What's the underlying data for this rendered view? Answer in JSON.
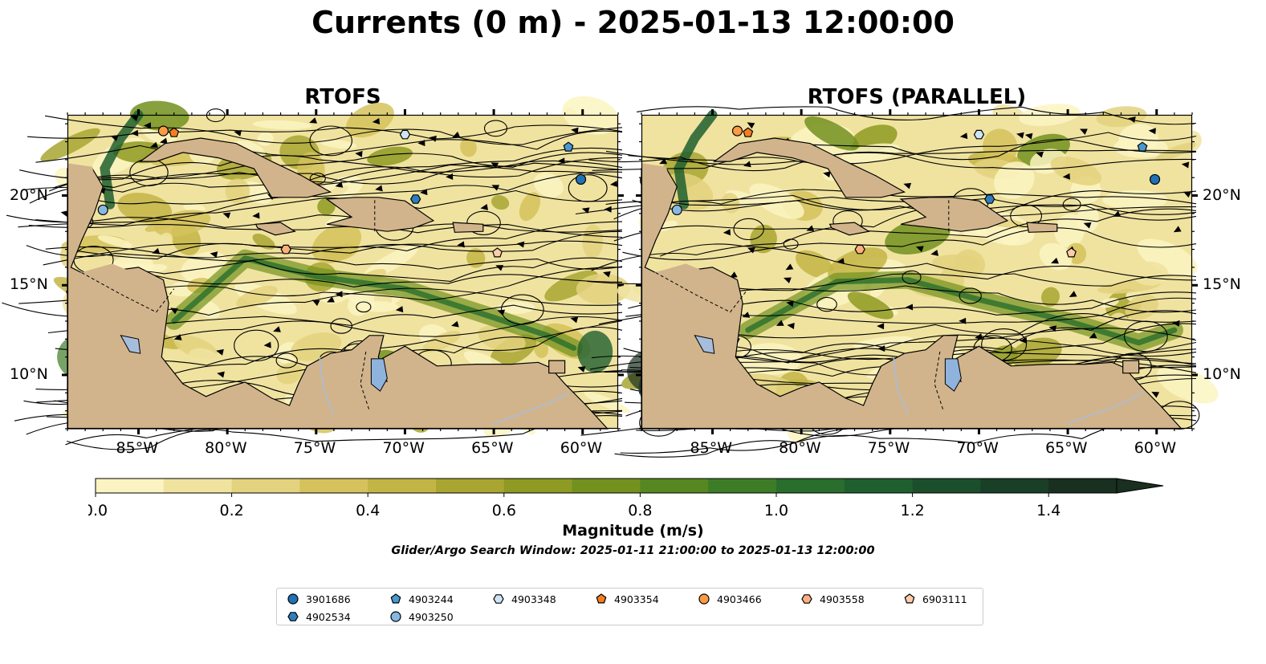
{
  "title": "Currents (0 m) - 2025-01-13 12:00:00",
  "panels": [
    {
      "title": "RTOFS"
    },
    {
      "title": "RTOFS (PARALLEL)"
    }
  ],
  "axes": {
    "lon_ticks": [
      "85°W",
      "80°W",
      "75°W",
      "70°W",
      "65°W",
      "60°W"
    ],
    "lat_ticks": [
      "20°N",
      "15°N",
      "10°N"
    ],
    "lon_range": [
      -89,
      -58
    ],
    "lat_range": [
      7,
      24.5
    ]
  },
  "colorbar": {
    "label": "Magnitude (m/s)",
    "ticks": [
      "0.0",
      "0.2",
      "0.4",
      "0.6",
      "0.8",
      "1.0",
      "1.2",
      "1.4"
    ],
    "range": [
      0,
      1.5
    ],
    "extend": "max",
    "colors": [
      "#fbf4c2",
      "#f0e3a0",
      "#e3d27e",
      "#d5c25c",
      "#c3b545",
      "#a8a631",
      "#8e9a22",
      "#72911f",
      "#568721",
      "#3d7c26",
      "#296e2c",
      "#1f5f2f",
      "#1b4f2c",
      "#193f27",
      "#192f1f"
    ]
  },
  "search_window": "Glider/Argo Search Window: 2025-01-11 21:00:00 to 2025-01-13 12:00:00",
  "colors": {
    "land": "#d2b48c",
    "lake": "#8fb3dd",
    "river": "#a7bedb",
    "streamline": "#000000"
  },
  "floats": [
    {
      "id": "3901686",
      "marker": "circle",
      "color": "#2171b5",
      "lon": -60.1,
      "lat": 20.9
    },
    {
      "id": "4902534",
      "marker": "hexagon",
      "color": "#2f7ebc",
      "lon": -69.4,
      "lat": 19.8
    },
    {
      "id": "4903244",
      "marker": "pentagon",
      "color": "#4a98d0",
      "lon": -60.8,
      "lat": 22.7
    },
    {
      "id": "4903250",
      "marker": "circle",
      "color": "#86b8e2",
      "lon": -87.0,
      "lat": 19.2
    },
    {
      "id": "4903348",
      "marker": "hexagon",
      "color": "#cfe4f5",
      "lon": -70.0,
      "lat": 23.4
    },
    {
      "id": "4903354",
      "marker": "pentagon",
      "color": "#f47e1f",
      "lon": -83.0,
      "lat": 23.5
    },
    {
      "id": "4903466",
      "marker": "circle",
      "color": "#fd9a45",
      "lon": -83.6,
      "lat": 23.6
    },
    {
      "id": "4903558",
      "marker": "hexagon",
      "color": "#fdb07e",
      "lon": -76.7,
      "lat": 17.0
    },
    {
      "id": "6903111",
      "marker": "pentagon",
      "color": "#fdccaa",
      "lon": -64.8,
      "lat": 16.8
    }
  ]
}
